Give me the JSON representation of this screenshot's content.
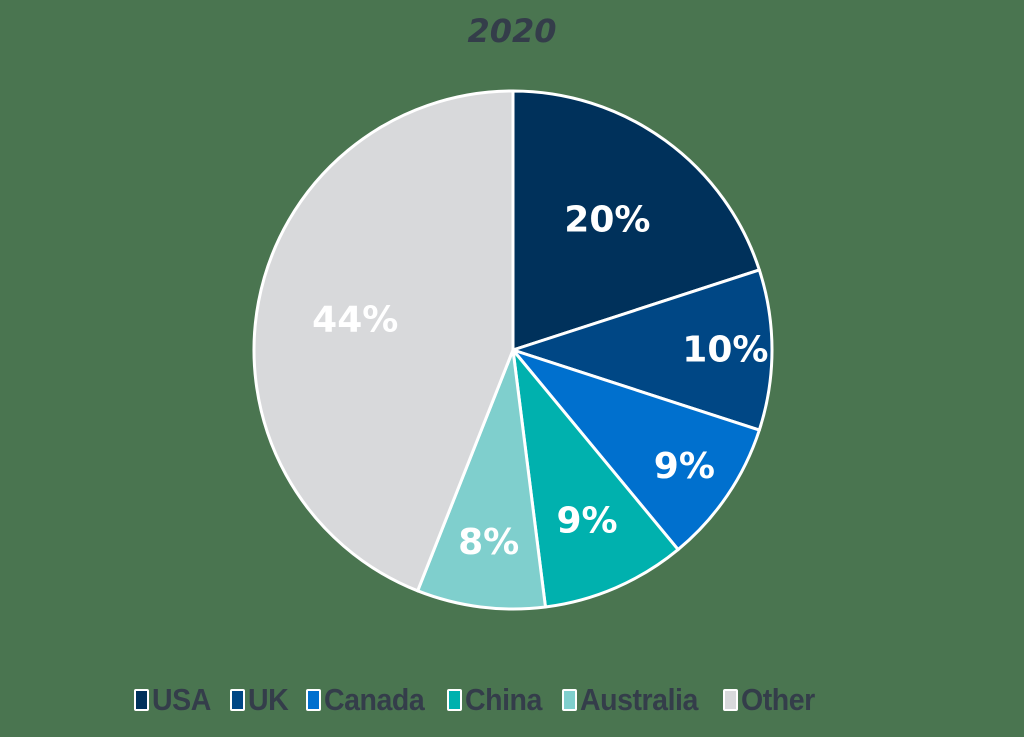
{
  "chart_data": {
    "type": "pie",
    "title": "2020",
    "categories": [
      "USA",
      "UK",
      "Canada",
      "China",
      "Australia",
      "Other"
    ],
    "values": [
      20,
      10,
      9,
      9,
      8,
      44
    ],
    "labels": [
      "20%",
      "10%",
      "9%",
      "9%",
      "8%",
      "44%"
    ],
    "colors": [
      "#00315b",
      "#004785",
      "#0070ce",
      "#00b1ae",
      "#7fcfcd",
      "#d8d9db"
    ],
    "start_angle": "12 o'clock",
    "direction": "clockwise",
    "legend_position": "bottom"
  },
  "style": {
    "background": "#4a7550",
    "text_color": "#343d4a",
    "slice_border": "#ffffff"
  },
  "legend": {
    "items": [
      {
        "label": "USA",
        "color": "#00315b"
      },
      {
        "label": "UK",
        "color": "#004785"
      },
      {
        "label": "Canada",
        "color": "#0070ce"
      },
      {
        "label": "China",
        "color": "#00b1ae"
      },
      {
        "label": "Australia",
        "color": "#7fcfcd"
      },
      {
        "label": "Other",
        "color": "#d8d9db"
      }
    ]
  }
}
